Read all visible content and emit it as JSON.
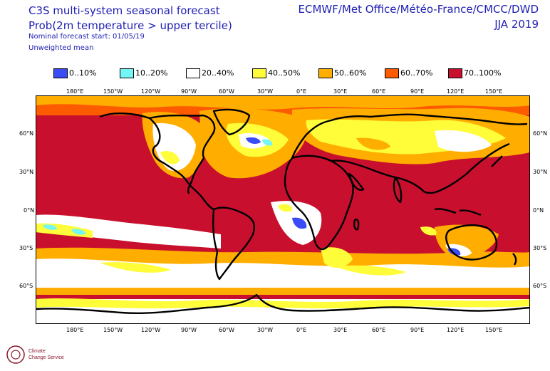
{
  "header": {
    "title": "C3S multi-system seasonal forecast",
    "subtitle": "Prob(2m temperature > upper tercile)",
    "forecast_start": "Nominal forecast start: 01/05/19",
    "mean_type": "Unweighted mean",
    "centres": "ECMWF/Met Office/Météo-France/CMCC/DWD",
    "season": "JJA 2019"
  },
  "legend": [
    {
      "label": "0..10%",
      "color": "#3a4cf5"
    },
    {
      "label": "10..20%",
      "color": "#74f6f4"
    },
    {
      "label": "20..40%",
      "color": "#ffffff"
    },
    {
      "label": "40..50%",
      "color": "#fffc3a"
    },
    {
      "label": "50..60%",
      "color": "#ffae00"
    },
    {
      "label": "60..70%",
      "color": "#fd5b00"
    },
    {
      "label": "70..100%",
      "color": "#c8102e"
    }
  ],
  "axes": {
    "lon_labels": [
      "180°E",
      "150°W",
      "120°W",
      "90°W",
      "60°W",
      "30°W",
      "0°E",
      "30°E",
      "60°E",
      "90°E",
      "120°E",
      "150°E"
    ],
    "lat_labels": [
      "60°N",
      "30°N",
      "0°N",
      "30°S",
      "60°S"
    ]
  },
  "logo": {
    "line1": "Climate",
    "line2": "Change Service"
  }
}
